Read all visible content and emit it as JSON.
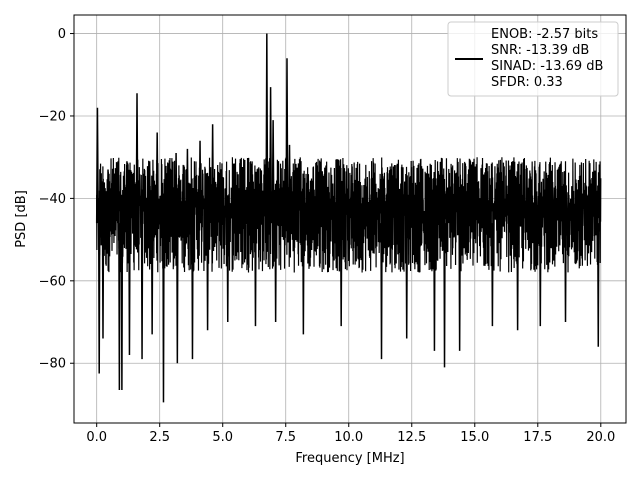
{
  "chart_data": {
    "type": "line",
    "xlabel": "Frequency [MHz]",
    "ylabel": "PSD [dB]",
    "xlim": [
      -0.9,
      21.0
    ],
    "ylim": [
      -94.5,
      4.5
    ],
    "xticks": [
      0.0,
      2.5,
      5.0,
      7.5,
      10.0,
      12.5,
      15.0,
      17.5,
      20.0
    ],
    "xtick_labels": [
      "0.0",
      "2.5",
      "5.0",
      "7.5",
      "10.0",
      "12.5",
      "15.0",
      "17.5",
      "20.0"
    ],
    "yticks": [
      0,
      -20,
      -40,
      -60,
      -80
    ],
    "ytick_labels": [
      "0",
      "−20",
      "−40",
      "−60",
      "−80"
    ],
    "grid": true,
    "legend_position": "upper right",
    "series": [
      {
        "name": "ENOB: -2.57 bits\nSNR: -13.39 dB\nSINAD: -13.69 dB\nSFDR: 0.33",
        "color": "#000000",
        "noise": {
          "x_range": [
            0.0,
            20.0
          ],
          "floor_top": -30,
          "floor_bottom": -62
        },
        "peaks": [
          {
            "x": 0.03,
            "y": -18
          },
          {
            "x": 0.45,
            "y": -33
          },
          {
            "x": 0.85,
            "y": -31
          },
          {
            "x": 1.2,
            "y": -31
          },
          {
            "x": 1.6,
            "y": -14.5
          },
          {
            "x": 2.1,
            "y": -31
          },
          {
            "x": 2.4,
            "y": -24
          },
          {
            "x": 2.85,
            "y": -33
          },
          {
            "x": 3.15,
            "y": -29
          },
          {
            "x": 3.6,
            "y": -28
          },
          {
            "x": 4.1,
            "y": -26
          },
          {
            "x": 4.6,
            "y": -22
          },
          {
            "x": 6.75,
            "y": 0
          },
          {
            "x": 6.9,
            "y": -13
          },
          {
            "x": 7.0,
            "y": -21
          },
          {
            "x": 7.55,
            "y": -6
          },
          {
            "x": 7.65,
            "y": -27
          }
        ],
        "dips": [
          {
            "x": 0.1,
            "y": -82.5
          },
          {
            "x": 0.25,
            "y": -74
          },
          {
            "x": 0.9,
            "y": -86.5
          },
          {
            "x": 1.0,
            "y": -86.5
          },
          {
            "x": 1.3,
            "y": -78
          },
          {
            "x": 1.8,
            "y": -79
          },
          {
            "x": 2.2,
            "y": -73
          },
          {
            "x": 2.65,
            "y": -89.5
          },
          {
            "x": 3.2,
            "y": -80
          },
          {
            "x": 3.8,
            "y": -79
          },
          {
            "x": 4.4,
            "y": -72
          },
          {
            "x": 5.2,
            "y": -70
          },
          {
            "x": 6.3,
            "y": -71
          },
          {
            "x": 7.1,
            "y": -70
          },
          {
            "x": 8.2,
            "y": -73
          },
          {
            "x": 9.7,
            "y": -71
          },
          {
            "x": 11.3,
            "y": -79
          },
          {
            "x": 12.3,
            "y": -74
          },
          {
            "x": 13.4,
            "y": -77
          },
          {
            "x": 13.8,
            "y": -81
          },
          {
            "x": 14.4,
            "y": -77
          },
          {
            "x": 15.7,
            "y": -71
          },
          {
            "x": 16.7,
            "y": -72
          },
          {
            "x": 17.6,
            "y": -71
          },
          {
            "x": 18.6,
            "y": -70
          },
          {
            "x": 19.9,
            "y": -76
          }
        ]
      }
    ]
  }
}
